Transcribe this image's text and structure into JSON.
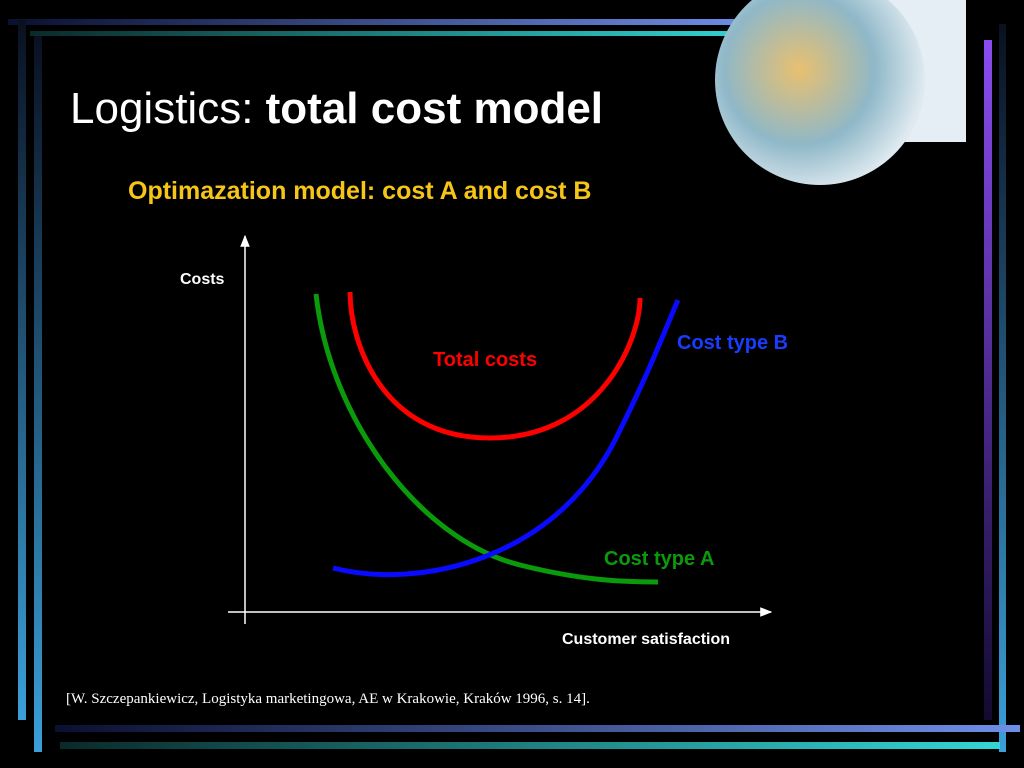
{
  "header": {
    "title_plain": "Logistics:",
    "title_bold": "total cost model"
  },
  "diagram": {
    "subtitle": "Optimazation model: cost A and cost B",
    "y_axis_label": "Costs",
    "x_axis_label": "Customer satisfaction",
    "curves": [
      {
        "label": "Total costs"
      },
      {
        "label": "Cost type B"
      },
      {
        "label": "Cost type A"
      }
    ]
  },
  "footer": {
    "citation": "[W. Szczepankiewicz, Logistyka marketingowa, AE w Krakowie, Kraków 1996, s. 14]."
  }
}
